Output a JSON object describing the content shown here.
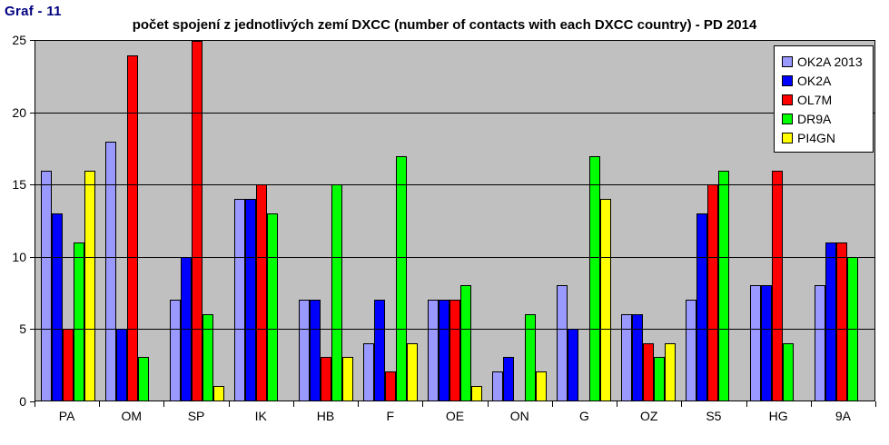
{
  "header": {
    "graf_label": "Graf - 11",
    "title": "počet spojení z jednotlivých zemí DXCC (number of contacts with each DXCC country) - PD 2014"
  },
  "colors": {
    "plot_background": "#c0c0c0",
    "page_background": "#ffffff",
    "axis": "#000000",
    "graf_label_color": "#000080"
  },
  "chart_data": {
    "type": "bar",
    "title": "počet spojení z jednotlivých zemí DXCC (number of contacts with each DXCC country) - PD 2014",
    "categories": [
      "PA",
      "OM",
      "SP",
      "IK",
      "HB",
      "F",
      "OE",
      "ON",
      "G",
      "OZ",
      "S5",
      "HG",
      "9A"
    ],
    "series": [
      {
        "name": "OK2A 2013",
        "color": "#9999ff",
        "values": [
          16,
          18,
          7,
          14,
          7,
          4,
          7,
          2,
          8,
          6,
          7,
          8,
          8
        ]
      },
      {
        "name": "OK2A",
        "color": "#0000ff",
        "values": [
          13,
          5,
          10,
          14,
          7,
          7,
          7,
          3,
          5,
          6,
          13,
          8,
          11
        ]
      },
      {
        "name": "OL7M",
        "color": "#ff0000",
        "values": [
          5,
          24,
          25,
          15,
          3,
          2,
          7,
          0,
          0,
          4,
          15,
          16,
          11
        ]
      },
      {
        "name": "DR9A",
        "color": "#00ff00",
        "values": [
          11,
          3,
          6,
          13,
          15,
          17,
          8,
          6,
          17,
          3,
          16,
          4,
          10
        ]
      },
      {
        "name": "PI4GN",
        "color": "#ffff00",
        "values": [
          16,
          0,
          1,
          0,
          3,
          4,
          1,
          2,
          14,
          4,
          0,
          0,
          0
        ]
      }
    ],
    "xlabel": "",
    "ylabel": "",
    "ylim": [
      0,
      25
    ],
    "yticks": [
      0,
      5,
      10,
      15,
      20,
      25
    ],
    "grid": true,
    "legend_position": "top-right"
  }
}
